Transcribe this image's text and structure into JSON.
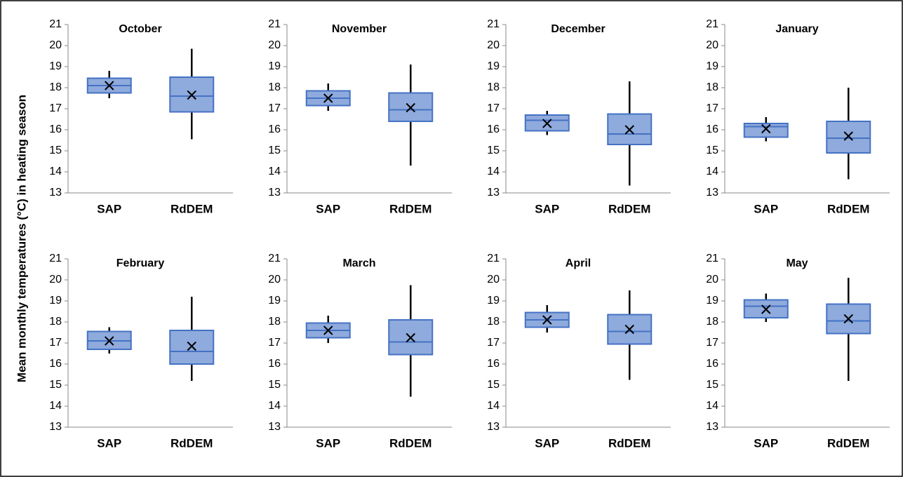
{
  "y_label": "Mean monthly temperatures (°C) in heating season",
  "chart_data": [
    {
      "type": "box",
      "title": "October",
      "categories": [
        "SAP",
        "RdDEM"
      ],
      "min": [
        17.5,
        15.55
      ],
      "q1": [
        17.75,
        16.85
      ],
      "median": [
        18.1,
        17.6
      ],
      "q3": [
        18.45,
        18.5
      ],
      "max": [
        18.8,
        19.85
      ],
      "mean": [
        18.1,
        17.65
      ],
      "color": "#8faadc",
      "edge_color": "#4472c4",
      "ylim": [
        13,
        21
      ],
      "yticks": [
        13,
        14,
        15,
        16,
        17,
        18,
        19,
        20,
        21
      ]
    },
    {
      "type": "box",
      "title": "November",
      "categories": [
        "SAP",
        "RdDEM"
      ],
      "min": [
        16.9,
        14.3
      ],
      "q1": [
        17.15,
        16.4
      ],
      "median": [
        17.5,
        16.95
      ],
      "q3": [
        17.85,
        17.75
      ],
      "max": [
        18.2,
        19.1
      ],
      "mean": [
        17.5,
        17.05
      ],
      "color": "#8faadc",
      "edge_color": "#4472c4",
      "ylim": [
        13,
        21
      ],
      "yticks": [
        13,
        14,
        15,
        16,
        17,
        18,
        19,
        20,
        21
      ]
    },
    {
      "type": "box",
      "title": "December",
      "categories": [
        "SAP",
        "RdDEM"
      ],
      "min": [
        15.75,
        13.35
      ],
      "q1": [
        15.95,
        15.3
      ],
      "median": [
        16.45,
        15.8
      ],
      "q3": [
        16.7,
        16.75
      ],
      "max": [
        16.9,
        18.3
      ],
      "mean": [
        16.3,
        16.0
      ],
      "color": "#8faadc",
      "edge_color": "#4472c4",
      "ylim": [
        13,
        21
      ],
      "yticks": [
        13,
        14,
        15,
        16,
        17,
        18,
        19,
        20,
        21
      ]
    },
    {
      "type": "box",
      "title": "January",
      "categories": [
        "SAP",
        "RdDEM"
      ],
      "min": [
        15.45,
        13.65
      ],
      "q1": [
        15.65,
        14.9
      ],
      "median": [
        16.15,
        15.6
      ],
      "q3": [
        16.3,
        16.4
      ],
      "max": [
        16.6,
        18.0
      ],
      "mean": [
        16.05,
        15.7
      ],
      "color": "#8faadc",
      "edge_color": "#4472c4",
      "ylim": [
        13,
        21
      ],
      "yticks": [
        13,
        14,
        15,
        16,
        17,
        18,
        19,
        20,
        21
      ]
    },
    {
      "type": "box",
      "title": "February",
      "categories": [
        "SAP",
        "RdDEM"
      ],
      "min": [
        16.5,
        15.2
      ],
      "q1": [
        16.7,
        16.0
      ],
      "median": [
        17.1,
        16.6
      ],
      "q3": [
        17.55,
        17.6
      ],
      "max": [
        17.75,
        19.2
      ],
      "mean": [
        17.1,
        16.85
      ],
      "color": "#8faadc",
      "edge_color": "#4472c4",
      "ylim": [
        13,
        21
      ],
      "yticks": [
        13,
        14,
        15,
        16,
        17,
        18,
        19,
        20,
        21
      ]
    },
    {
      "type": "box",
      "title": "March",
      "categories": [
        "SAP",
        "RdDEM"
      ],
      "min": [
        17.0,
        14.45
      ],
      "q1": [
        17.25,
        16.45
      ],
      "median": [
        17.6,
        17.05
      ],
      "q3": [
        17.95,
        18.1
      ],
      "max": [
        18.3,
        19.75
      ],
      "mean": [
        17.6,
        17.25
      ],
      "color": "#8faadc",
      "edge_color": "#4472c4",
      "ylim": [
        13,
        21
      ],
      "yticks": [
        13,
        14,
        15,
        16,
        17,
        18,
        19,
        20,
        21
      ]
    },
    {
      "type": "box",
      "title": "April",
      "categories": [
        "SAP",
        "RdDEM"
      ],
      "min": [
        17.5,
        15.25
      ],
      "q1": [
        17.75,
        16.95
      ],
      "median": [
        18.1,
        17.55
      ],
      "q3": [
        18.45,
        18.35
      ],
      "max": [
        18.8,
        19.5
      ],
      "mean": [
        18.1,
        17.65
      ],
      "color": "#8faadc",
      "edge_color": "#4472c4",
      "ylim": [
        13,
        21
      ],
      "yticks": [
        13,
        14,
        15,
        16,
        17,
        18,
        19,
        20,
        21
      ]
    },
    {
      "type": "box",
      "title": "May",
      "categories": [
        "SAP",
        "RdDEM"
      ],
      "min": [
        18.0,
        15.2
      ],
      "q1": [
        18.2,
        17.45
      ],
      "median": [
        18.75,
        18.05
      ],
      "q3": [
        19.05,
        18.85
      ],
      "max": [
        19.35,
        20.1
      ],
      "mean": [
        18.6,
        18.15
      ],
      "color": "#8faadc",
      "edge_color": "#4472c4",
      "ylim": [
        13,
        21
      ],
      "yticks": [
        13,
        14,
        15,
        16,
        17,
        18,
        19,
        20,
        21
      ]
    }
  ]
}
